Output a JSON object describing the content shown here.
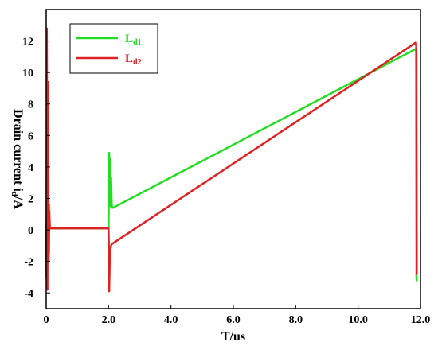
{
  "chart_data": {
    "type": "line",
    "xlabel": "T/us",
    "ylabel_main": "Drain current i",
    "ylabel_sub": "d",
    "ylabel_tail": "/A",
    "xlim": [
      0,
      12.0
    ],
    "ylim": [
      -5,
      14
    ],
    "x_ticks": [
      0,
      2.0,
      4.0,
      6.0,
      8.0,
      10.0,
      12.0
    ],
    "x_tick_labels": [
      "0",
      "2.0",
      "4.0",
      "6.0",
      "8.0",
      "10.0",
      "12.0"
    ],
    "y_ticks": [
      -4,
      -2,
      0,
      2,
      4,
      6,
      8,
      10,
      12
    ],
    "y_tick_labels": [
      "-4",
      "-2",
      "0",
      "2",
      "4",
      "6",
      "8",
      "10",
      "12"
    ],
    "grid": false,
    "legend_position": "top-left",
    "series": [
      {
        "name": "L",
        "name_sub": "d1",
        "color": "#22dd22",
        "x": [
          0.0,
          0.03,
          0.05,
          0.07,
          0.09,
          0.1,
          0.11,
          0.12,
          0.15,
          2.0,
          2.01,
          2.02,
          2.04,
          2.05,
          2.06,
          2.08,
          2.1,
          2.12,
          2.14,
          11.85,
          11.86,
          11.87,
          11.88,
          11.9
        ],
        "y": [
          0.0,
          1.5,
          -1.7,
          1.8,
          -1.5,
          1.6,
          0.1,
          0.1,
          0.1,
          0.1,
          2.2,
          4.9,
          2.0,
          4.5,
          1.5,
          3.3,
          1.6,
          1.4,
          1.4,
          11.5,
          11.5,
          -3.0,
          -3.2,
          -3.2
        ]
      },
      {
        "name": "L",
        "name_sub": "d2",
        "color": "#dd2222",
        "x": [
          0.0,
          0.01,
          0.02,
          0.03,
          0.04,
          0.05,
          0.06,
          0.07,
          0.08,
          0.1,
          0.12,
          0.15,
          2.0,
          2.01,
          2.02,
          2.04,
          2.06,
          2.08,
          2.1,
          11.85,
          11.86,
          11.87,
          11.88,
          11.9
        ],
        "y": [
          0.0,
          -3.0,
          12.8,
          5.0,
          -3.8,
          9.4,
          1.5,
          4.8,
          -2.0,
          1.2,
          0.1,
          0.1,
          0.1,
          -1.0,
          -3.9,
          -1.6,
          -1.2,
          -1.0,
          -0.9,
          11.9,
          11.9,
          11.2,
          -2.8,
          -2.8
        ]
      }
    ]
  }
}
